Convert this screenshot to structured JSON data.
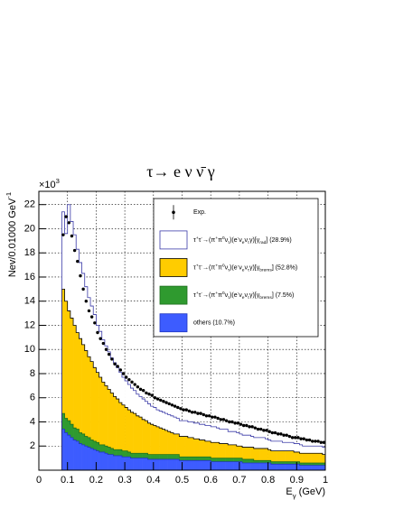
{
  "chart_data": {
    "type": "stacked_histogram",
    "title": "τ→ e ν ν̄ γ",
    "y_multiplier": [
      {
        "text": "×10"
      },
      {
        "text": "3",
        "shift": "sup"
      }
    ],
    "ylabel": [
      {
        "text": "Nev/0.01000 GeV"
      },
      {
        "text": "-1",
        "shift": "sup"
      }
    ],
    "xlabel": [
      {
        "text": "E"
      },
      {
        "text": "γ",
        "shift": "sub"
      },
      {
        "text": " (GeV)"
      }
    ],
    "xlim": [
      0,
      1
    ],
    "ylim": [
      0,
      23.1
    ],
    "xticks": [
      0,
      0.1,
      0.2,
      0.3,
      0.4,
      0.5,
      0.6,
      0.7,
      0.8,
      0.9,
      1
    ],
    "yticks": [
      2,
      4,
      6,
      8,
      10,
      12,
      14,
      16,
      18,
      20,
      22
    ],
    "grid": true,
    "legend": "top-right",
    "bins": [
      0.08,
      0.09,
      0.1,
      0.11,
      0.12,
      0.13,
      0.14,
      0.15,
      0.16,
      0.17,
      0.18,
      0.19,
      0.2,
      0.21,
      0.22,
      0.23,
      0.24,
      0.25,
      0.26,
      0.27,
      0.28,
      0.29,
      0.3,
      0.31,
      0.32,
      0.33,
      0.34,
      0.35,
      0.36,
      0.37,
      0.38,
      0.39,
      0.4,
      0.41,
      0.42,
      0.43,
      0.44,
      0.45,
      0.46,
      0.47,
      0.48,
      0.49,
      0.5,
      0.51,
      0.52,
      0.53,
      0.54,
      0.55,
      0.56,
      0.57,
      0.58,
      0.59,
      0.6,
      0.61,
      0.62,
      0.63,
      0.64,
      0.65,
      0.66,
      0.67,
      0.68,
      0.69,
      0.7,
      0.71,
      0.72,
      0.73,
      0.74,
      0.75,
      0.76,
      0.77,
      0.78,
      0.79,
      0.8,
      0.81,
      0.82,
      0.83,
      0.84,
      0.85,
      0.86,
      0.87,
      0.88,
      0.89,
      0.9,
      0.91,
      0.92,
      0.93,
      0.94,
      0.95,
      0.96,
      0.97,
      0.98,
      0.99,
      1.0
    ],
    "data": {
      "name": "Exp.",
      "color": "#000000",
      "values": [
        19.5,
        21.0,
        20.5,
        19.4,
        18.2,
        17.3,
        16.1,
        15.0,
        14.0,
        13.2,
        12.7,
        12.2,
        11.4,
        10.9,
        10.5,
        10.0,
        9.6,
        9.2,
        8.8,
        8.6,
        8.3,
        8.0,
        7.7,
        7.5,
        7.3,
        7.1,
        6.9,
        6.7,
        6.6,
        6.4,
        6.3,
        6.2,
        6.0,
        5.9,
        5.8,
        5.7,
        5.6,
        5.5,
        5.4,
        5.3,
        5.2,
        5.1,
        5.0,
        5.0,
        4.9,
        4.8,
        4.8,
        4.7,
        4.7,
        4.6,
        4.5,
        4.5,
        4.4,
        4.4,
        4.3,
        4.2,
        4.2,
        4.1,
        4.0,
        4.0,
        3.9,
        3.9,
        3.8,
        3.7,
        3.7,
        3.6,
        3.6,
        3.5,
        3.4,
        3.4,
        3.3,
        3.3,
        3.2,
        3.1,
        3.1,
        3.0,
        3.0,
        2.9,
        2.9,
        2.8,
        2.7,
        2.7,
        2.7,
        2.6,
        2.6,
        2.5,
        2.5,
        2.4,
        2.4,
        2.4,
        2.3,
        2.3
      ]
    },
    "series": [
      {
        "name_parts": [
          {
            "text": "τ"
          },
          {
            "text": "+",
            "shift": "sup"
          },
          {
            "text": "τ"
          },
          {
            "text": "-",
            "shift": "sup"
          },
          {
            "text": "→(π"
          },
          {
            "text": "+",
            "shift": "sup"
          },
          {
            "text": "π"
          },
          {
            "text": "0",
            "shift": "sup"
          },
          {
            "text": "ν"
          },
          {
            "text": "τ",
            "shift": "sub"
          },
          {
            "text": ")(e"
          },
          {
            "text": "-",
            "shift": "sup"
          },
          {
            "text": "ν"
          },
          {
            "text": "e",
            "shift": "sub"
          },
          {
            "text": "ν"
          },
          {
            "text": "τ",
            "shift": "sub"
          },
          {
            "text": "γ)[γ"
          },
          {
            "text": "rad",
            "shift": "sub"
          },
          {
            "text": "] (28.9%)"
          }
        ],
        "color": "#ffffff",
        "edge": "#3a3aa8",
        "values": [
          6.4,
          5.6,
          8.8,
          8.0,
          7.5,
          6.9,
          6.3,
          5.9,
          5.3,
          4.9,
          4.6,
          4.4,
          3.9,
          3.8,
          3.5,
          3.3,
          3.1,
          2.9,
          2.8,
          2.6,
          2.5,
          2.3,
          2.2,
          2.1,
          2.0,
          1.9,
          1.8,
          1.7,
          1.7,
          1.6,
          1.6,
          1.5,
          1.5,
          1.4,
          1.4,
          1.4,
          1.4,
          1.4,
          1.4,
          1.4,
          1.3,
          1.3,
          1.3,
          1.3,
          1.3,
          1.3,
          1.3,
          1.3,
          1.3,
          1.3,
          1.3,
          1.3,
          1.3,
          1.3,
          1.2,
          1.2,
          1.2,
          1.2,
          1.1,
          1.1,
          1.1,
          1.1,
          1.0,
          1.0,
          1.0,
          1.0,
          0.9,
          0.9,
          0.9,
          0.9,
          0.9,
          0.8,
          0.8,
          0.8,
          0.8,
          0.8,
          0.8,
          0.7,
          0.7,
          0.7,
          0.7,
          0.7,
          0.7,
          0.7,
          0.6,
          0.6,
          0.6,
          0.6,
          0.6,
          0.6,
          0.6,
          0.6
        ]
      },
      {
        "name_parts": [
          {
            "text": "τ"
          },
          {
            "text": "+",
            "shift": "sup"
          },
          {
            "text": "τ"
          },
          {
            "text": "-",
            "shift": "sup"
          },
          {
            "text": "→(π"
          },
          {
            "text": "+",
            "shift": "sup"
          },
          {
            "text": "π"
          },
          {
            "text": "0",
            "shift": "sup"
          },
          {
            "text": "ν"
          },
          {
            "text": "τ",
            "shift": "sub"
          },
          {
            "text": ")(e"
          },
          {
            "text": "-",
            "shift": "sup"
          },
          {
            "text": "ν"
          },
          {
            "text": "e",
            "shift": "sub"
          },
          {
            "text": "ν"
          },
          {
            "text": "τ",
            "shift": "sub"
          },
          {
            "text": "γ)[γ"
          },
          {
            "text": "brems",
            "shift": "sub"
          },
          {
            "text": "] (52.8%)"
          }
        ],
        "color": "#ffcc00",
        "edge": "#000000",
        "values": [
          10.3,
          9.7,
          9.1,
          8.8,
          8.5,
          8.0,
          7.8,
          7.4,
          7.1,
          6.7,
          6.5,
          6.1,
          5.8,
          5.6,
          5.2,
          5.0,
          4.8,
          4.6,
          4.4,
          4.2,
          3.9,
          3.8,
          3.6,
          3.5,
          3.4,
          3.3,
          3.1,
          3.0,
          2.8,
          2.7,
          2.6,
          2.5,
          2.4,
          2.3,
          2.2,
          2.1,
          2.0,
          1.9,
          1.8,
          1.7,
          1.7,
          1.7,
          1.7,
          1.7,
          1.6,
          1.6,
          1.5,
          1.5,
          1.4,
          1.4,
          1.3,
          1.3,
          1.3,
          1.3,
          1.3,
          1.2,
          1.2,
          1.2,
          1.1,
          1.1,
          1.1,
          1.0,
          1.0,
          1.0,
          1.0,
          1.0,
          1.0,
          1.0,
          1.0,
          1.0,
          1.0,
          1.0,
          0.9,
          0.9,
          0.9,
          0.9,
          0.9,
          0.9,
          0.9,
          0.9,
          0.9,
          0.8,
          0.8,
          0.8,
          0.8,
          0.8,
          0.8,
          0.8,
          0.8,
          0.8,
          0.8,
          0.7
        ]
      },
      {
        "name_parts": [
          {
            "text": "τ"
          },
          {
            "text": "+",
            "shift": "sup"
          },
          {
            "text": "τ"
          },
          {
            "text": "-",
            "shift": "sup"
          },
          {
            "text": "→(π"
          },
          {
            "text": "+",
            "shift": "sup"
          },
          {
            "text": "π"
          },
          {
            "text": "0",
            "shift": "sup"
          },
          {
            "text": "ν"
          },
          {
            "text": "τ",
            "shift": "sub"
          },
          {
            "text": ")(e"
          },
          {
            "text": "-",
            "shift": "sup"
          },
          {
            "text": "ν"
          },
          {
            "text": "e",
            "shift": "sub"
          },
          {
            "text": "ν"
          },
          {
            "text": "τ",
            "shift": "sub"
          },
          {
            "text": "γ)[γ"
          },
          {
            "text": "brems",
            "shift": "sub"
          },
          {
            "text": "] (7.5%)"
          }
        ],
        "color": "#2f9a2f",
        "edge": "#1d6e1d",
        "values": [
          1.3,
          1.2,
          1.2,
          1.1,
          1.0,
          1.0,
          0.9,
          0.9,
          0.8,
          0.8,
          0.7,
          0.7,
          0.7,
          0.6,
          0.6,
          0.6,
          0.6,
          0.5,
          0.5,
          0.5,
          0.5,
          0.5,
          0.5,
          0.4,
          0.4,
          0.4,
          0.4,
          0.4,
          0.4,
          0.4,
          0.4,
          0.4,
          0.4,
          0.4,
          0.4,
          0.4,
          0.4,
          0.4,
          0.4,
          0.4,
          0.4,
          0.3,
          0.3,
          0.3,
          0.3,
          0.3,
          0.3,
          0.3,
          0.3,
          0.3,
          0.3,
          0.3,
          0.3,
          0.3,
          0.3,
          0.3,
          0.3,
          0.3,
          0.3,
          0.3,
          0.3,
          0.3,
          0.3,
          0.3,
          0.3,
          0.3,
          0.3,
          0.2,
          0.2,
          0.2,
          0.2,
          0.2,
          0.2,
          0.2,
          0.2,
          0.2,
          0.2,
          0.2,
          0.2,
          0.2,
          0.2,
          0.2,
          0.2,
          0.2,
          0.2,
          0.2,
          0.2,
          0.2,
          0.2,
          0.2,
          0.2,
          0.2
        ]
      },
      {
        "name_parts": [
          {
            "text": "others (10.7%)"
          }
        ],
        "color": "#3d5cff",
        "edge": "#2036c0",
        "values": [
          3.4,
          3.1,
          2.9,
          2.7,
          2.5,
          2.4,
          2.2,
          2.1,
          2.0,
          1.9,
          1.8,
          1.7,
          1.6,
          1.5,
          1.5,
          1.4,
          1.3,
          1.3,
          1.2,
          1.2,
          1.2,
          1.1,
          1.1,
          1.1,
          1.0,
          1.0,
          1.0,
          1.0,
          1.0,
          1.0,
          0.9,
          0.9,
          0.9,
          0.9,
          0.9,
          0.9,
          0.9,
          0.9,
          0.9,
          0.9,
          0.9,
          0.8,
          0.8,
          0.8,
          0.8,
          0.8,
          0.8,
          0.8,
          0.8,
          0.8,
          0.8,
          0.8,
          0.7,
          0.7,
          0.7,
          0.7,
          0.7,
          0.7,
          0.7,
          0.7,
          0.7,
          0.7,
          0.7,
          0.6,
          0.6,
          0.6,
          0.6,
          0.6,
          0.6,
          0.6,
          0.6,
          0.6,
          0.6,
          0.5,
          0.5,
          0.5,
          0.5,
          0.5,
          0.5,
          0.5,
          0.5,
          0.5,
          0.5,
          0.4,
          0.4,
          0.4,
          0.4,
          0.4,
          0.4,
          0.4,
          0.4,
          0.4
        ]
      }
    ]
  }
}
